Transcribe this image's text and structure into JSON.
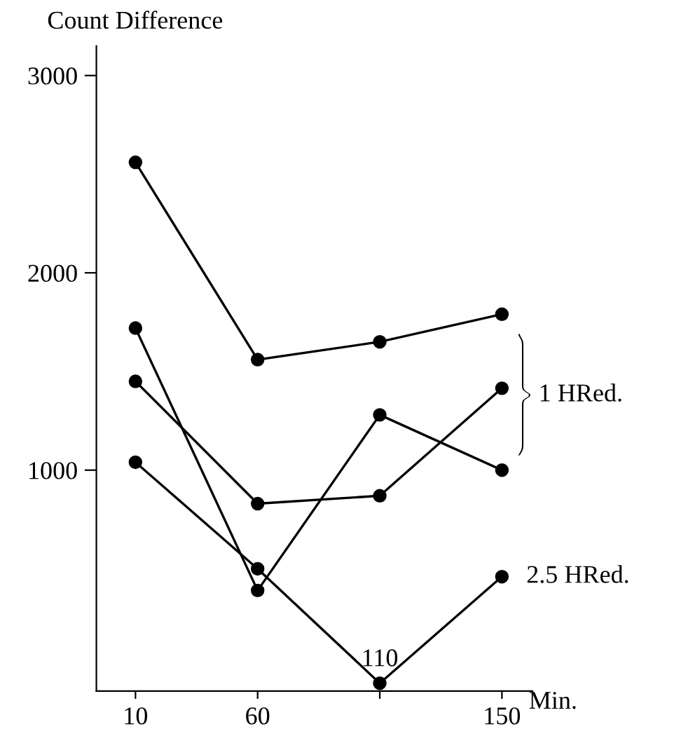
{
  "chart_data": {
    "type": "line",
    "ylabel": "Count Difference",
    "xlabel": "Min.",
    "categories": [
      "10",
      "60",
      "110",
      "150"
    ],
    "series": [
      {
        "color": "#000000",
        "values": [
          2560,
          1560,
          1650,
          1790
        ]
      },
      {
        "color": "#000000",
        "values": [
          1720,
          390,
          1280,
          1000
        ]
      },
      {
        "color": "#000000",
        "values": [
          1450,
          830,
          870,
          1415
        ]
      },
      {
        "name": "2.5 HRed.",
        "color": "#000000",
        "values": [
          1040,
          500,
          -80,
          460
        ]
      }
    ],
    "annotations": [
      {
        "text": "1 HRed.",
        "x": "150",
        "y": 1380
      }
    ],
    "ylim": [
      -120,
      3150
    ],
    "yticks": [
      1000,
      2000,
      3000
    ],
    "marker": "circle",
    "line_style": "solid",
    "grid": false,
    "legend": false
  }
}
